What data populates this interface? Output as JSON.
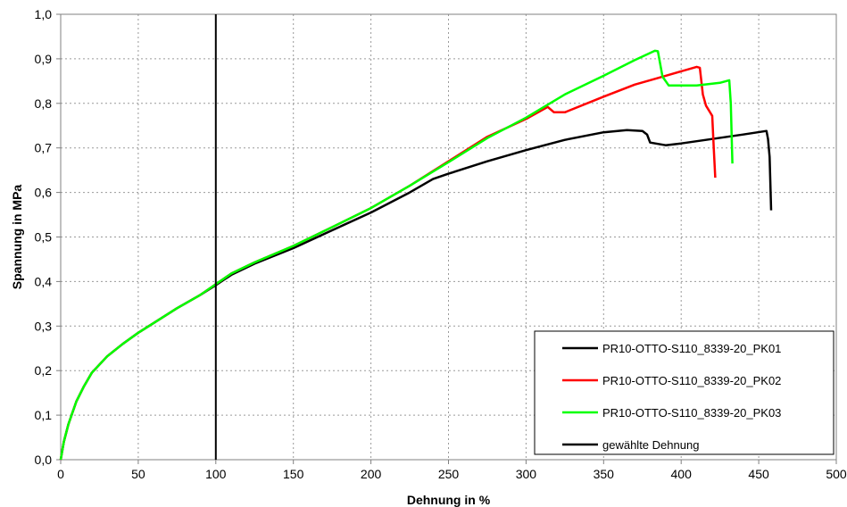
{
  "chart_data": {
    "type": "line",
    "title": "",
    "xlabel": "Dehnung in %",
    "ylabel": "Spannung in MPa",
    "xlim": [
      0,
      500
    ],
    "ylim": [
      0,
      1.0
    ],
    "grid": true,
    "legend_position": "bottom-right",
    "x_ticks": [
      "0",
      "50",
      "100",
      "150",
      "200",
      "250",
      "300",
      "350",
      "400",
      "450",
      "500"
    ],
    "y_ticks": [
      "0,0",
      "0,1",
      "0,2",
      "0,3",
      "0,4",
      "0,5",
      "0,6",
      "0,7",
      "0,8",
      "0,9",
      "1,0"
    ],
    "series": [
      {
        "name": "PR10-OTTO-S110_8339-20_PK01",
        "color": "#000000",
        "points": [
          [
            0,
            0
          ],
          [
            2,
            0.04
          ],
          [
            5,
            0.08
          ],
          [
            10,
            0.13
          ],
          [
            15,
            0.165
          ],
          [
            20,
            0.195
          ],
          [
            30,
            0.232
          ],
          [
            40,
            0.26
          ],
          [
            50,
            0.285
          ],
          [
            60,
            0.307
          ],
          [
            75,
            0.34
          ],
          [
            90,
            0.37
          ],
          [
            100,
            0.392
          ],
          [
            110,
            0.415
          ],
          [
            125,
            0.44
          ],
          [
            150,
            0.475
          ],
          [
            175,
            0.515
          ],
          [
            200,
            0.555
          ],
          [
            225,
            0.6
          ],
          [
            240,
            0.63
          ],
          [
            250,
            0.642
          ],
          [
            275,
            0.67
          ],
          [
            300,
            0.695
          ],
          [
            325,
            0.718
          ],
          [
            350,
            0.735
          ],
          [
            365,
            0.74
          ],
          [
            375,
            0.738
          ],
          [
            378,
            0.73
          ],
          [
            380,
            0.712
          ],
          [
            390,
            0.706
          ],
          [
            400,
            0.71
          ],
          [
            420,
            0.72
          ],
          [
            440,
            0.73
          ],
          [
            455,
            0.738
          ],
          [
            456,
            0.72
          ],
          [
            457,
            0.68
          ],
          [
            458,
            0.56
          ]
        ]
      },
      {
        "name": "PR10-OTTO-S110_8339-20_PK02",
        "color": "#ff0000",
        "points": [
          [
            0,
            0
          ],
          [
            2,
            0.04
          ],
          [
            5,
            0.08
          ],
          [
            10,
            0.13
          ],
          [
            15,
            0.165
          ],
          [
            20,
            0.195
          ],
          [
            30,
            0.232
          ],
          [
            40,
            0.26
          ],
          [
            50,
            0.285
          ],
          [
            60,
            0.307
          ],
          [
            75,
            0.34
          ],
          [
            90,
            0.37
          ],
          [
            100,
            0.394
          ],
          [
            110,
            0.418
          ],
          [
            125,
            0.443
          ],
          [
            150,
            0.48
          ],
          [
            175,
            0.522
          ],
          [
            200,
            0.565
          ],
          [
            225,
            0.615
          ],
          [
            250,
            0.67
          ],
          [
            275,
            0.725
          ],
          [
            300,
            0.765
          ],
          [
            314,
            0.792
          ],
          [
            318,
            0.78
          ],
          [
            325,
            0.78
          ],
          [
            350,
            0.815
          ],
          [
            370,
            0.842
          ],
          [
            390,
            0.862
          ],
          [
            410,
            0.882
          ],
          [
            412,
            0.88
          ],
          [
            414,
            0.82
          ],
          [
            416,
            0.795
          ],
          [
            420,
            0.772
          ],
          [
            421,
            0.7
          ],
          [
            422,
            0.633
          ]
        ]
      },
      {
        "name": "PR10-OTTO-S110_8339-20_PK03",
        "color": "#00ff00",
        "points": [
          [
            0,
            0
          ],
          [
            2,
            0.04
          ],
          [
            5,
            0.08
          ],
          [
            10,
            0.13
          ],
          [
            15,
            0.165
          ],
          [
            20,
            0.195
          ],
          [
            30,
            0.232
          ],
          [
            40,
            0.26
          ],
          [
            50,
            0.285
          ],
          [
            60,
            0.307
          ],
          [
            75,
            0.34
          ],
          [
            90,
            0.37
          ],
          [
            100,
            0.394
          ],
          [
            110,
            0.418
          ],
          [
            125,
            0.443
          ],
          [
            150,
            0.48
          ],
          [
            175,
            0.522
          ],
          [
            200,
            0.565
          ],
          [
            225,
            0.615
          ],
          [
            250,
            0.668
          ],
          [
            275,
            0.722
          ],
          [
            300,
            0.768
          ],
          [
            325,
            0.82
          ],
          [
            350,
            0.862
          ],
          [
            370,
            0.897
          ],
          [
            383,
            0.918
          ],
          [
            385,
            0.917
          ],
          [
            388,
            0.86
          ],
          [
            392,
            0.84
          ],
          [
            410,
            0.84
          ],
          [
            425,
            0.846
          ],
          [
            431,
            0.852
          ],
          [
            432,
            0.8
          ],
          [
            433,
            0.665
          ]
        ]
      }
    ],
    "vertical_marker": {
      "name": "gewählte Dehnung",
      "x": 100,
      "color": "#000000"
    }
  }
}
